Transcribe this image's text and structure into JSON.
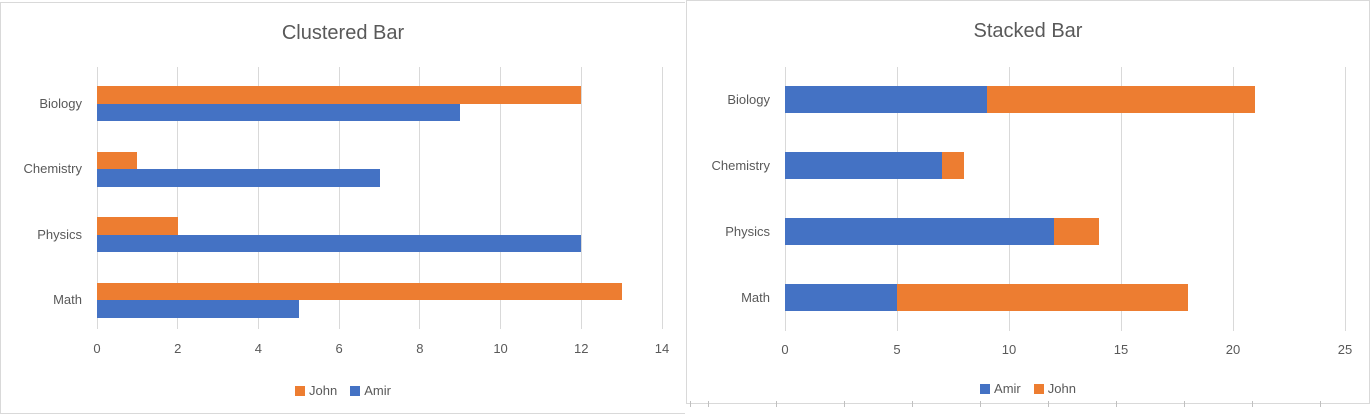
{
  "styles": {
    "background": "#FFFFFF",
    "text_color": "#595959",
    "gridline_color": "#D9D9D9",
    "panel_border_color": "#D9D9D9",
    "series_colors": {
      "John": "#ED7D31",
      "Amir": "#4472C4"
    }
  },
  "chart_data": [
    {
      "type": "bar",
      "subtype": "clustered",
      "orientation": "horizontal",
      "title": "Clustered Bar",
      "categories": [
        "Biology",
        "Chemistry",
        "Physics",
        "Math"
      ],
      "series": [
        {
          "name": "John",
          "color": "#ED7D31",
          "values": [
            12,
            1,
            2,
            13
          ]
        },
        {
          "name": "Amir",
          "color": "#4472C4",
          "values": [
            9,
            7,
            12,
            5
          ]
        }
      ],
      "xlim": [
        0,
        14
      ],
      "x_ticks": [
        0,
        2,
        4,
        6,
        8,
        10,
        12,
        14
      ],
      "xlabel": "",
      "ylabel": "",
      "gridlines": true,
      "legend": {
        "position": "bottom",
        "items": [
          "John",
          "Amir"
        ]
      }
    },
    {
      "type": "bar",
      "subtype": "stacked",
      "orientation": "horizontal",
      "title": "Stacked Bar",
      "categories": [
        "Biology",
        "Chemistry",
        "Physics",
        "Math"
      ],
      "series": [
        {
          "name": "Amir",
          "color": "#4472C4",
          "values": [
            9,
            7,
            12,
            5
          ]
        },
        {
          "name": "John",
          "color": "#ED7D31",
          "values": [
            12,
            1,
            2,
            13
          ]
        }
      ],
      "stack_totals": [
        21,
        8,
        14,
        18
      ],
      "xlim": [
        0,
        25
      ],
      "x_ticks": [
        0,
        5,
        10,
        15,
        20,
        25
      ],
      "xlabel": "",
      "ylabel": "",
      "gridlines": true,
      "legend": {
        "position": "bottom",
        "items": [
          "Amir",
          "John"
        ]
      }
    }
  ]
}
